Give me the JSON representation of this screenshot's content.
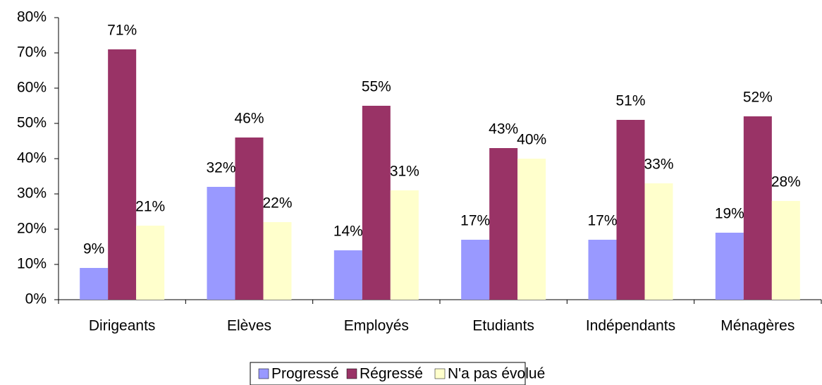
{
  "chart_data": {
    "type": "bar",
    "categories": [
      "Dirigeants",
      "Elèves",
      "Employés",
      "Etudiants",
      "Indépendants",
      "Ménagères"
    ],
    "series": [
      {
        "name": "Progressé",
        "color": "#9999ff",
        "values": [
          9,
          32,
          14,
          17,
          17,
          19
        ],
        "value_labels": [
          "9%",
          "32%",
          "14%",
          "17%",
          "17%",
          "19%"
        ]
      },
      {
        "name": "Régressé",
        "color": "#993366",
        "values": [
          71,
          46,
          55,
          43,
          51,
          52
        ],
        "value_labels": [
          "71%",
          "46%",
          "55%",
          "43%",
          "51%",
          "52%"
        ]
      },
      {
        "name": "N'a pas évolué",
        "color": "#ffffcc",
        "values": [
          21,
          22,
          31,
          40,
          33,
          28
        ],
        "value_labels": [
          "21%",
          "22%",
          "31%",
          "40%",
          "33%",
          "28%"
        ]
      }
    ],
    "ylim": [
      0,
      80
    ],
    "yticks": [
      {
        "value": 0,
        "label": "0%"
      },
      {
        "value": 10,
        "label": "10%"
      },
      {
        "value": 20,
        "label": "20%"
      },
      {
        "value": 30,
        "label": "30%"
      },
      {
        "value": 40,
        "label": "40%"
      },
      {
        "value": 50,
        "label": "50%"
      },
      {
        "value": 60,
        "label": "60%"
      },
      {
        "value": 70,
        "label": "70%"
      },
      {
        "value": 80,
        "label": "80%"
      }
    ],
    "grid": false,
    "legend": "bottom"
  }
}
